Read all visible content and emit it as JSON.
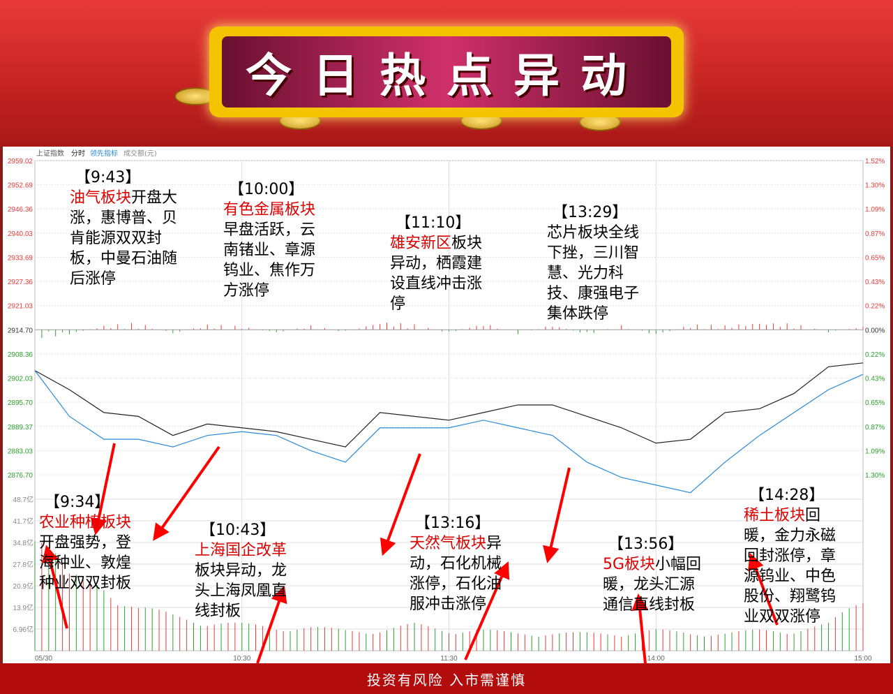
{
  "banner": {
    "title": "今日热点异动"
  },
  "footer": {
    "text": "投资有风险  入市需谨慎"
  },
  "header": {
    "index_name": "上证指数",
    "mode": "分时",
    "indicator": "领先指标",
    "volume_label": "成交额(元)"
  },
  "colors": {
    "up": "#e83a3a",
    "down": "#2ca02c",
    "index_line": "#222222",
    "avg_line": "#2a8ad8",
    "arrow": "#ff0000",
    "highlight": "#d00000"
  },
  "chart_data": {
    "type": "line",
    "x_labels": [
      "05/30",
      "10:30",
      "11:30",
      "14:00",
      "15:00"
    ],
    "price_ticks": [
      "2959.02",
      "2952.69",
      "2946.36",
      "2940.03",
      "2933.69",
      "2927.36",
      "2921.03",
      "2914.70",
      "2908.36",
      "2902.03",
      "2895.70",
      "2889.37",
      "2883.03",
      "2876.70"
    ],
    "pct_ticks": [
      "1.52%",
      "1.30%",
      "1.09%",
      "0.87%",
      "0.65%",
      "0.43%",
      "0.22%",
      "0.00%",
      "0.22%",
      "0.43%",
      "0.65%",
      "0.87%",
      "1.09%",
      "1.30%"
    ],
    "volume_ticks": [
      "48.7亿",
      "41.7亿",
      "34.8亿",
      "27.8亿",
      "20.9亿",
      "13.9亿",
      "6.96亿"
    ],
    "ylim": [
      2876.7,
      2959.02
    ],
    "x_minutes": [
      0,
      10,
      20,
      30,
      40,
      50,
      60,
      70,
      80,
      90,
      100,
      110,
      120,
      130,
      140,
      150,
      160,
      170,
      180,
      190,
      200,
      210,
      220,
      230,
      240
    ],
    "series": [
      {
        "values": [
          2904,
          2899,
          2893,
          2892,
          2887,
          2890,
          2889,
          2888,
          2886,
          2884,
          2893,
          2892,
          2891,
          2893,
          2895,
          2895,
          2892,
          2889,
          2885,
          2886,
          2893,
          2894,
          2898,
          2905,
          2906
        ]
      },
      {
        "values": [
          2904,
          2892,
          2886,
          2886,
          2884,
          2887,
          2888,
          2887,
          2883,
          2880,
          2889,
          2889,
          2889,
          2891,
          2889,
          2887,
          2880,
          2876,
          2874,
          2872,
          2880,
          2887,
          2893,
          2899,
          2903
        ]
      }
    ],
    "leading_indicator": [
      -0.1,
      -0.06,
      0.05,
      0.08,
      -0.05,
      0.06,
      0.04,
      -0.04,
      0.05,
      -0.03,
      0.1,
      0.06,
      -0.04,
      0.08,
      -0.05,
      0.06,
      -0.06,
      0.05,
      -0.07,
      0.06,
      0.05,
      0.09,
      0.07,
      -0.03,
      0.04
    ],
    "volume": [
      47,
      25,
      22,
      15,
      12,
      10,
      9,
      8,
      8,
      7,
      7,
      9,
      7,
      7,
      6,
      6,
      6,
      6,
      7,
      6,
      6,
      7,
      7,
      9,
      18
    ]
  },
  "annotations": [
    {
      "time": "【9:43】",
      "hl": "油气板块",
      "text": "开盘大涨，惠博普、贝肯能源双双封板，中曼石油随后涨停"
    },
    {
      "time": "【10:00】",
      "hl": "有色金属板块",
      "text": "早盘活跃，云南锗业、章源钨业、焦作万方涨停"
    },
    {
      "time": "【11:10】",
      "hl": "雄安新区",
      "text": "板块异动，栖霞建设直线冲击涨停"
    },
    {
      "time": "【13:29】",
      "hl": "",
      "text": "芯片板块全线下挫，三川智慧、光力科技、康强电子集体跌停"
    },
    {
      "time": "【9:34】",
      "hl": "农业种植板块",
      "text": "开盘强势，登海种业、敦煌种业双双封板"
    },
    {
      "time": "【10:43】",
      "hl": "上海国企改革",
      "text": "板块异动，龙头上海凤凰直线封板"
    },
    {
      "time": "【13:16】",
      "hl": "天然气板块",
      "text": "异动，石化机械涨停，石化油服冲击涨停"
    },
    {
      "time": "【13:56】",
      "hl": "5G板块",
      "text": "小幅回暖，龙头汇源通信直线封板"
    },
    {
      "time": "【14:28】",
      "hl": "稀土板块",
      "text": "回暖，金力永磁回封涨停，章源钨业、中色股份、翔鹭钨业双双涨停"
    }
  ]
}
